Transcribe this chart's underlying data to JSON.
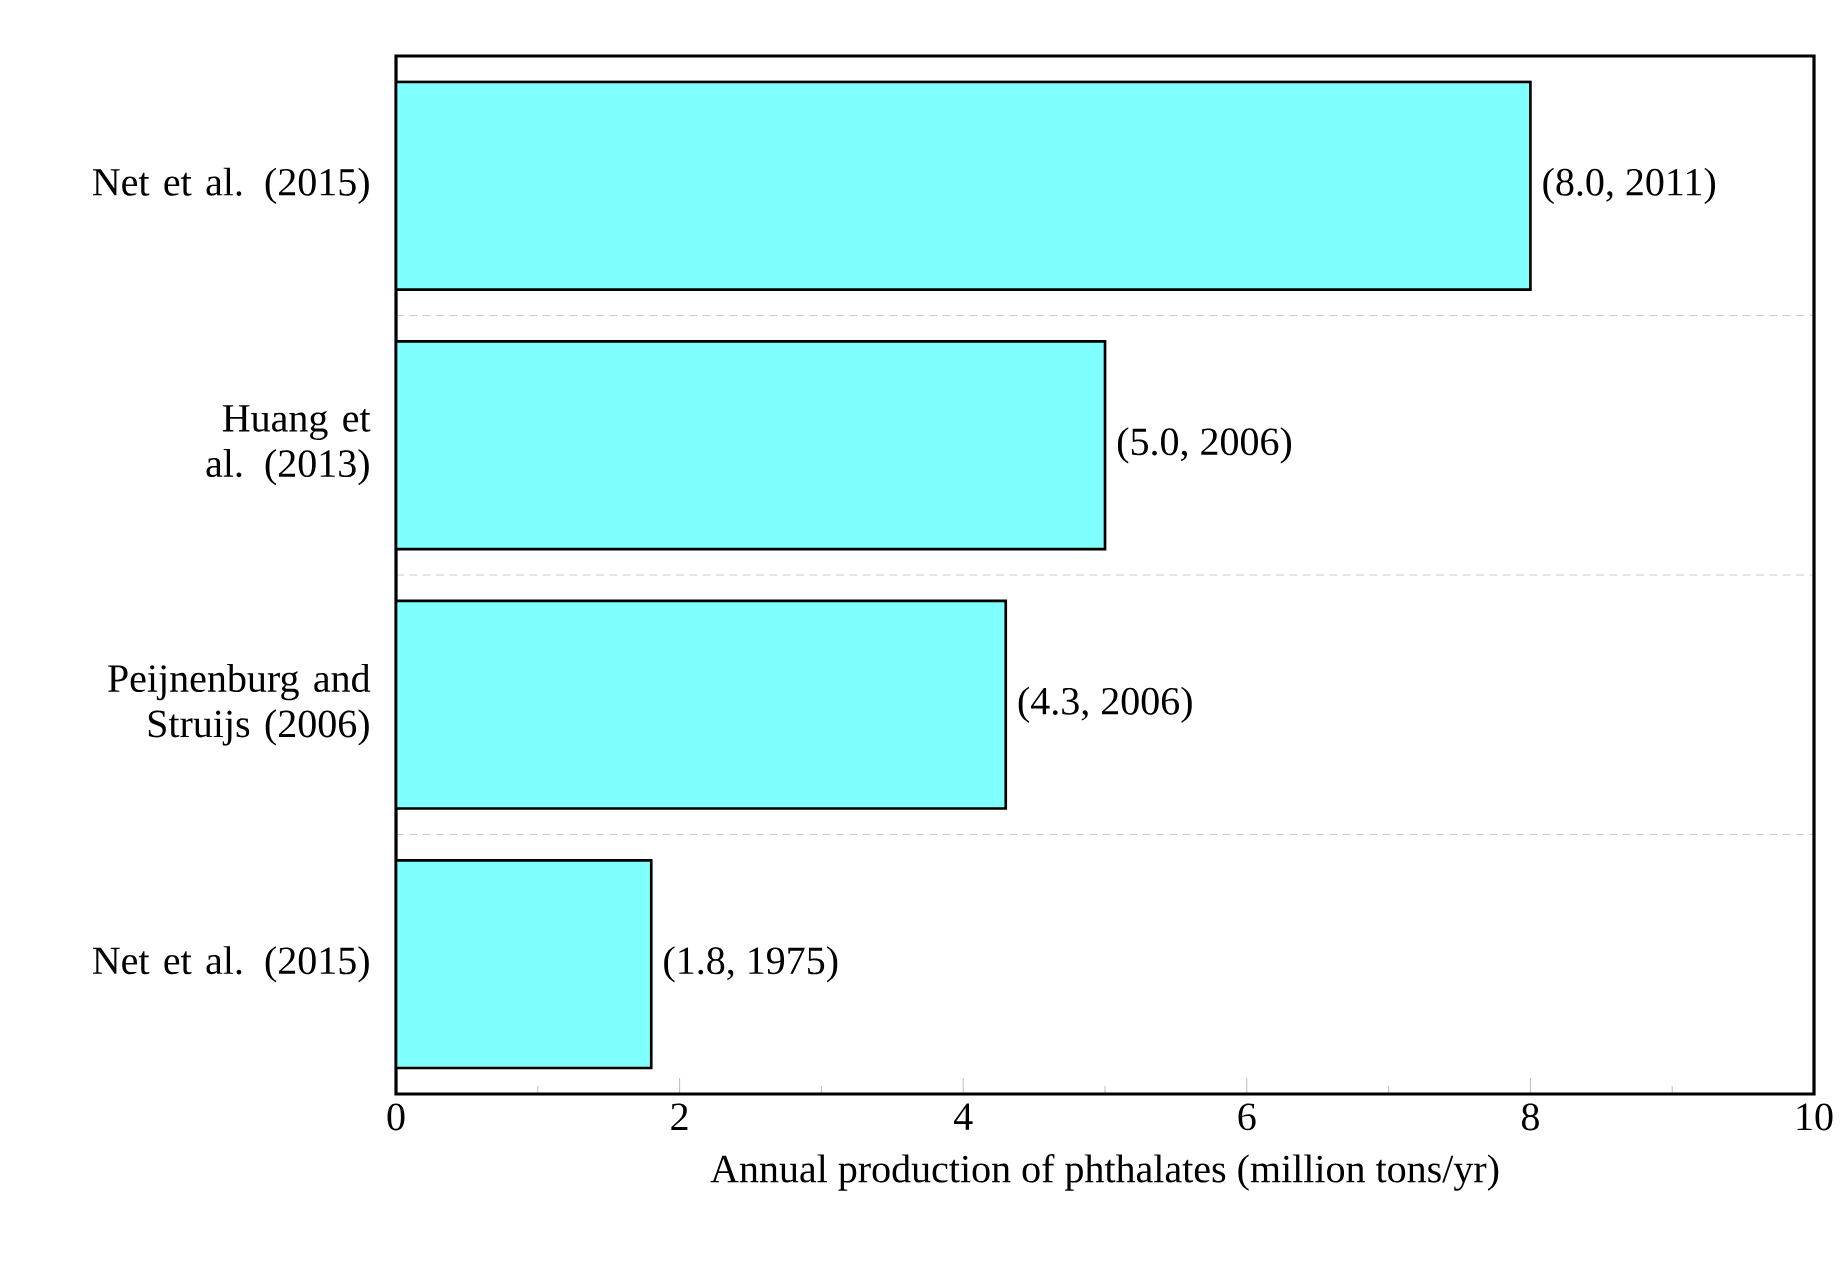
{
  "chart_data": {
    "type": "bar",
    "orientation": "horizontal",
    "categories": [
      "Net et al. (2015)",
      "Huang et al. (2013)",
      "Peijnenburg and Struijs (2006)",
      "Net et al. (2015)"
    ],
    "values": [
      8.0,
      5.0,
      4.3,
      1.8
    ],
    "value_labels": [
      "(8.0, 2011)",
      "(5.0, 2006)",
      "(4.3, 2006)",
      "(1.8, 1975)"
    ],
    "color": "#80ffff",
    "xlabel": "Annual production of phthalates (million tons/yr)",
    "xlim": [
      0,
      10
    ],
    "xticks": [
      0,
      2,
      4,
      6,
      8,
      10
    ],
    "grid": "y"
  }
}
